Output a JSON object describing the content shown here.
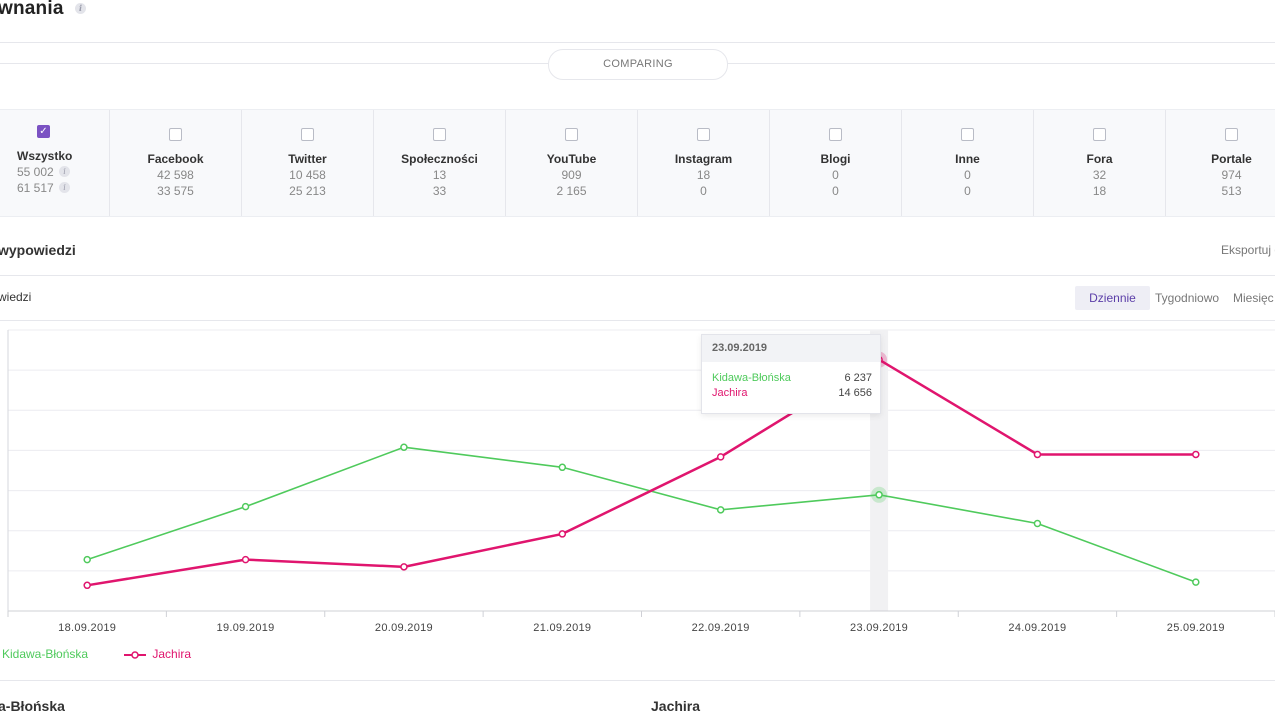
{
  "page": {
    "title": "wnania",
    "info_icon": "i",
    "comparing_label": "COMPARING",
    "section_title": "wypowiedzi",
    "export_label": "Eksportuj d",
    "subheading": "wiedzi",
    "period_tabs": [
      "Dziennie",
      "Tygodniowo",
      "Miesięc"
    ],
    "active_tab": "Dziennie"
  },
  "filters": [
    {
      "label": "Wszystko",
      "v1": "55 002",
      "v2": "61 517",
      "checked": true,
      "info": true
    },
    {
      "label": "Facebook",
      "v1": "42 598",
      "v2": "33 575",
      "checked": false
    },
    {
      "label": "Twitter",
      "v1": "10 458",
      "v2": "25 213",
      "checked": false
    },
    {
      "label": "Społeczności",
      "v1": "13",
      "v2": "33",
      "checked": false
    },
    {
      "label": "YouTube",
      "v1": "909",
      "v2": "2 165",
      "checked": false
    },
    {
      "label": "Instagram",
      "v1": "18",
      "v2": "0",
      "checked": false
    },
    {
      "label": "Blogi",
      "v1": "0",
      "v2": "0",
      "checked": false
    },
    {
      "label": "Inne",
      "v1": "0",
      "v2": "0",
      "checked": false
    },
    {
      "label": "Fora",
      "v1": "32",
      "v2": "18",
      "checked": false
    },
    {
      "label": "Portale",
      "v1": "974",
      "v2": "513",
      "checked": false
    }
  ],
  "chart_data": {
    "type": "line",
    "x": [
      "18.09.2019",
      "19.09.2019",
      "20.09.2019",
      "21.09.2019",
      "22.09.2019",
      "23.09.2019",
      "24.09.2019",
      "25.09.2019"
    ],
    "series": [
      {
        "name": "Kidawa-Błońska",
        "color": "#4fca5c",
        "values": [
          2200,
          5500,
          9200,
          7950,
          5300,
          6237,
          4450,
          800
        ]
      },
      {
        "name": "Jachira",
        "color": "#e0156e",
        "values": [
          600,
          2200,
          1750,
          3800,
          8600,
          14656,
          8750,
          8750
        ]
      }
    ],
    "ylim": [
      -1000,
      16500
    ],
    "grid": true,
    "highlight_index": 5,
    "legend_position": "bottom-left"
  },
  "tooltip": {
    "date": "23.09.2019",
    "rows": [
      {
        "name": "Kidawa-Błońska",
        "value": "6 237",
        "color": "#4fca5c"
      },
      {
        "name": "Jachira",
        "value": "14 656",
        "color": "#e0156e"
      }
    ]
  },
  "candidates": {
    "left_heading": "a-Błońska",
    "right_heading": "Jachira"
  },
  "colors": {
    "accent": "#7b52c3",
    "green": "#4fca5c",
    "pink": "#e0156e"
  }
}
